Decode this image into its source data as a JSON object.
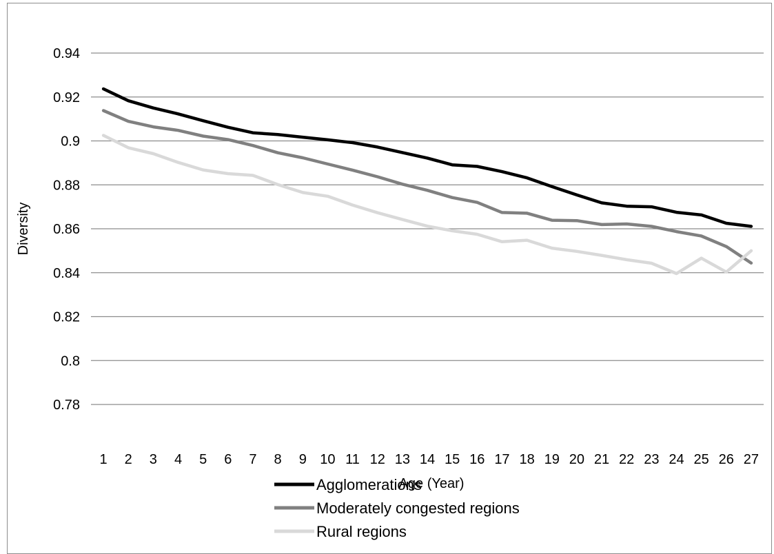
{
  "chart_data": {
    "type": "line",
    "title": "",
    "xlabel": "Age (Year)",
    "ylabel": "Diversity",
    "ylim": [
      0.78,
      0.94
    ],
    "yticks": [
      "0.94",
      "0.92",
      "0.9",
      "0.88",
      "0.86",
      "0.84",
      "0.82",
      "0.8",
      "0.78"
    ],
    "grid": "horizontal",
    "legend_position": "bottom",
    "categories": [
      "1",
      "2",
      "3",
      "4",
      "5",
      "6",
      "7",
      "8",
      "9",
      "10",
      "11",
      "12",
      "13",
      "14",
      "15",
      "16",
      "17",
      "18",
      "19",
      "20",
      "21",
      "22",
      "23",
      "24",
      "25",
      "26",
      "27"
    ],
    "series": [
      {
        "name": "Agglomerations",
        "color": "#000000",
        "values": [
          0.9237,
          0.9183,
          0.915,
          0.9123,
          0.9092,
          0.9062,
          0.9037,
          0.9029,
          0.9017,
          0.9005,
          0.8992,
          0.8972,
          0.8947,
          0.8922,
          0.8891,
          0.8884,
          0.886,
          0.8832,
          0.8792,
          0.8754,
          0.8718,
          0.8703,
          0.87,
          0.8675,
          0.8663,
          0.8625,
          0.8611
        ]
      },
      {
        "name": "Moderately congested regions",
        "color": "#808080",
        "values": [
          0.9138,
          0.9089,
          0.9064,
          0.9048,
          0.9022,
          0.9006,
          0.8979,
          0.8946,
          0.8923,
          0.8895,
          0.8867,
          0.8837,
          0.8803,
          0.8775,
          0.8742,
          0.872,
          0.8674,
          0.8671,
          0.8639,
          0.8637,
          0.8619,
          0.8622,
          0.8611,
          0.8587,
          0.8567,
          0.8519,
          0.8444
        ]
      },
      {
        "name": "Rural regions",
        "color": "#d9d9d9",
        "values": [
          0.9025,
          0.8969,
          0.8942,
          0.8902,
          0.8868,
          0.8851,
          0.8843,
          0.8801,
          0.8765,
          0.8748,
          0.8708,
          0.8673,
          0.8642,
          0.8612,
          0.8591,
          0.8575,
          0.8541,
          0.8548,
          0.8512,
          0.8497,
          0.8479,
          0.8459,
          0.8443,
          0.8396,
          0.8466,
          0.8403,
          0.85
        ]
      }
    ]
  }
}
